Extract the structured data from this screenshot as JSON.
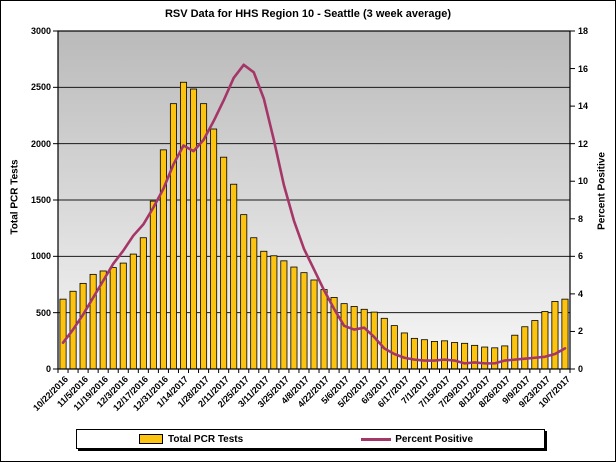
{
  "chart_data": {
    "type": "combo-bar-line",
    "title": "RSV Data for HHS Region 10 - Seattle (3 week average)",
    "x_tick_labels": [
      "10/22/2016",
      "11/5/2016",
      "11/19/2016",
      "12/3/2016",
      "12/17/2016",
      "12/31/2016",
      "1/14/2017",
      "1/28/2017",
      "2/11/2017",
      "2/25/2017",
      "3/11/2017",
      "3/25/2017",
      "4/8/2017",
      "4/22/2017",
      "5/6/2017",
      "5/20/2017",
      "6/3/2017",
      "6/17/2017",
      "7/1/2017",
      "7/15/2017",
      "7/29/2017",
      "8/12/2017",
      "8/26/2017",
      "9/9/2017",
      "9/23/2017",
      "10/7/2017"
    ],
    "x_note": "weekly bars; every second week labeled",
    "left_axis": {
      "title": "Total PCR Tests",
      "min": 0,
      "max": 3000,
      "step": 500,
      "ticks": [
        "0",
        "500",
        "1000",
        "1500",
        "2000",
        "2500",
        "3000"
      ]
    },
    "right_axis": {
      "title": "Percent Positive",
      "min": 0,
      "max": 18,
      "step": 2,
      "ticks": [
        "0",
        "2",
        "4",
        "6",
        "8",
        "10",
        "12",
        "14",
        "16",
        "18"
      ]
    },
    "series": [
      {
        "name": "Total PCR Tests",
        "type": "bar",
        "axis": "left",
        "color": "#FCC411",
        "values": [
          620,
          690,
          760,
          840,
          870,
          900,
          940,
          1020,
          1165,
          1490,
          1945,
          2355,
          2545,
          2485,
          2355,
          2130,
          1880,
          1640,
          1370,
          1165,
          1045,
          1005,
          960,
          905,
          855,
          790,
          705,
          635,
          580,
          555,
          530,
          505,
          450,
          385,
          320,
          272,
          260,
          245,
          250,
          235,
          228,
          210,
          195,
          188,
          205,
          300,
          375,
          430,
          510,
          600,
          620
        ]
      },
      {
        "name": "Percent Positive",
        "type": "line",
        "axis": "right",
        "color": "#A53768",
        "values": [
          1.4,
          2.1,
          2.9,
          3.8,
          4.7,
          5.6,
          6.3,
          7.1,
          7.7,
          8.6,
          9.6,
          10.9,
          11.9,
          11.6,
          12.2,
          13.2,
          14.3,
          15.5,
          16.2,
          15.8,
          14.4,
          12.2,
          9.8,
          7.9,
          6.4,
          5.3,
          4.2,
          3.2,
          2.3,
          2.1,
          2.2,
          1.7,
          1.1,
          0.8,
          0.6,
          0.5,
          0.45,
          0.45,
          0.5,
          0.45,
          0.3,
          0.35,
          0.3,
          0.3,
          0.45,
          0.5,
          0.55,
          0.6,
          0.65,
          0.8,
          1.1
        ]
      }
    ],
    "legend": {
      "position": "bottom",
      "entries": [
        "Total PCR Tests",
        "Percent Positive"
      ]
    },
    "plot_background": {
      "gradient_top": "#bababa",
      "gradient_bottom": "#f7f7f7"
    },
    "grid": "horizontal major gridlines every 500"
  }
}
